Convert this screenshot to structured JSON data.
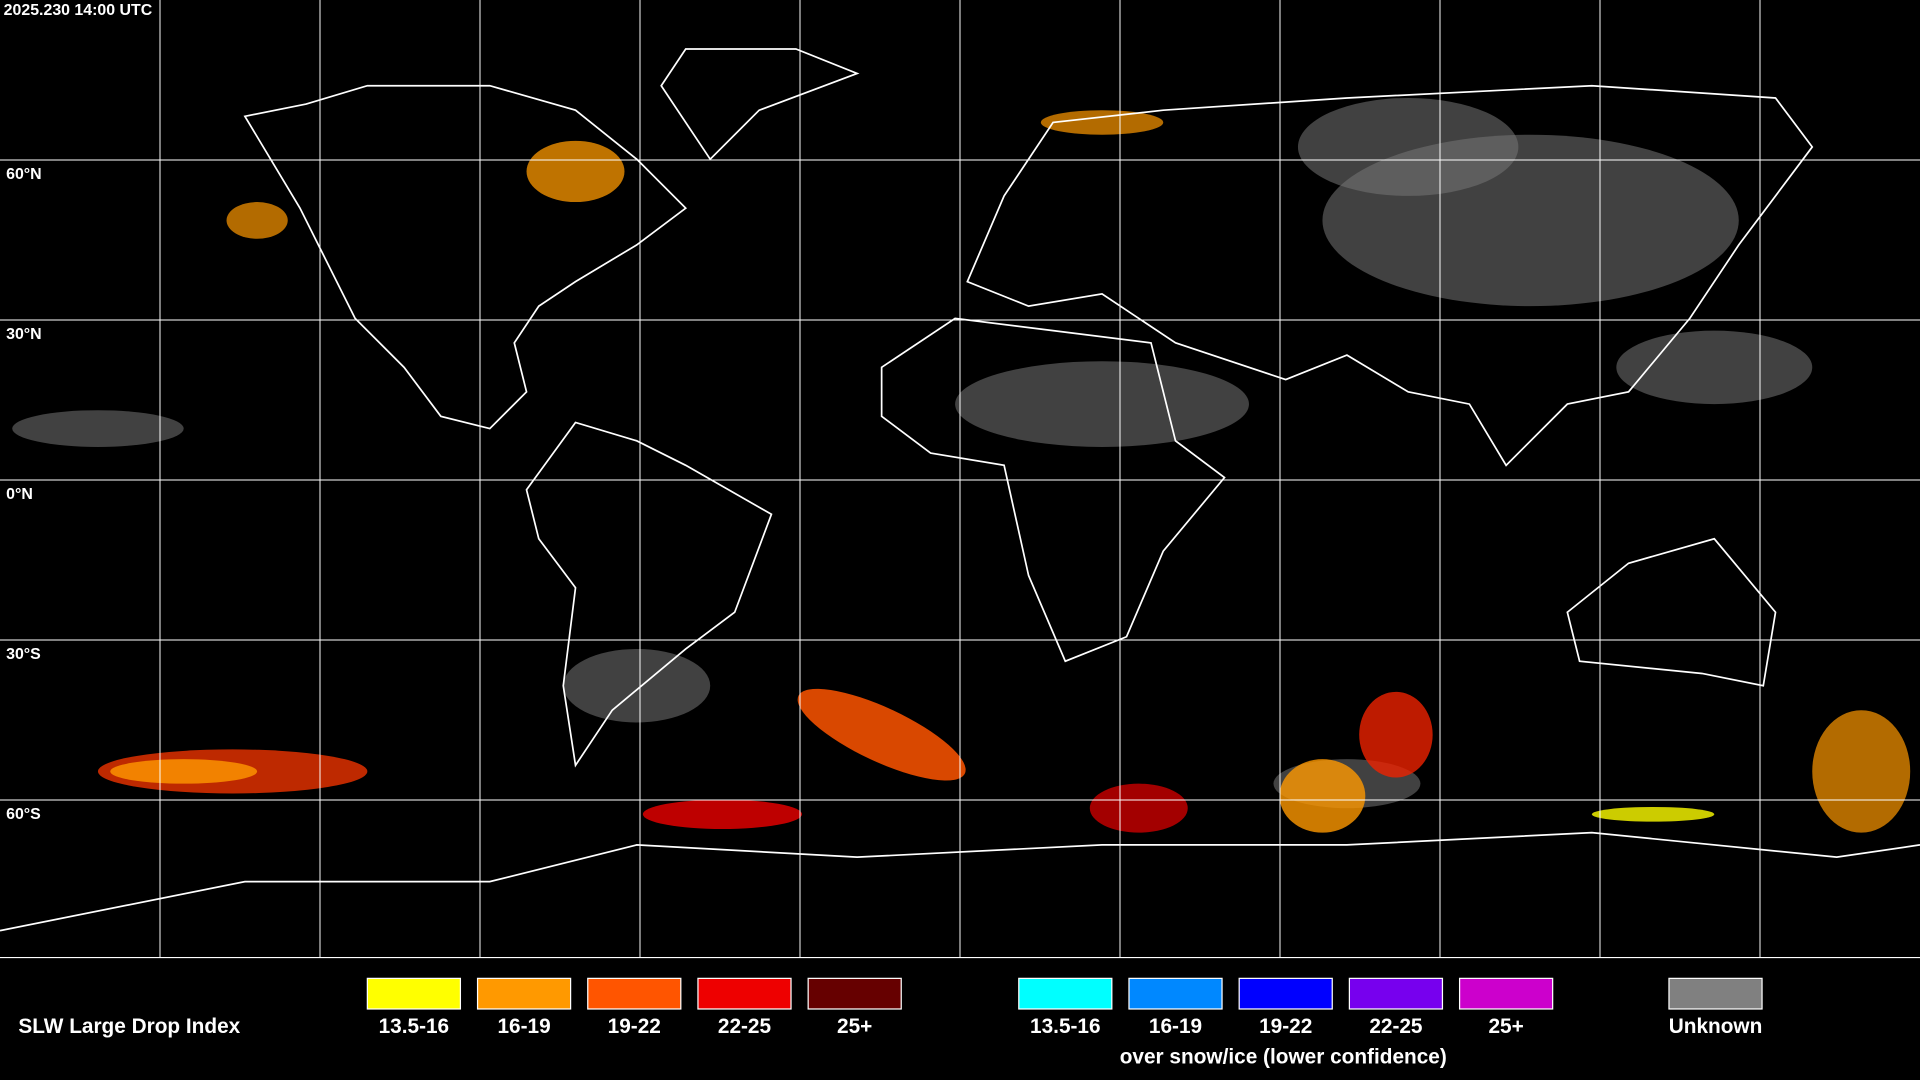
{
  "header": {
    "timestamp": "2025.230 14:00 UTC"
  },
  "map": {
    "latitude_labels": [
      "60°N",
      "30°N",
      "0°N",
      "30°S",
      "60°S"
    ]
  },
  "legend": {
    "title": "SLW Large Drop Index",
    "normal": [
      {
        "label": "13.5-16",
        "color": "#ffff00"
      },
      {
        "label": "16-19",
        "color": "#ff9900"
      },
      {
        "label": "19-22",
        "color": "#ff5500"
      },
      {
        "label": "22-25",
        "color": "#ee0000"
      },
      {
        "label": "25+",
        "color": "#660000"
      }
    ],
    "snow_ice": [
      {
        "label": "13.5-16",
        "color": "#00ffff"
      },
      {
        "label": "16-19",
        "color": "#0088ff"
      },
      {
        "label": "19-22",
        "color": "#0000ff"
      },
      {
        "label": "22-25",
        "color": "#7700ee"
      },
      {
        "label": "25+",
        "color": "#cc00cc"
      }
    ],
    "snow_ice_note": "over snow/ice (lower confidence)",
    "unknown": {
      "label": "Unknown",
      "color": "#808080"
    }
  }
}
